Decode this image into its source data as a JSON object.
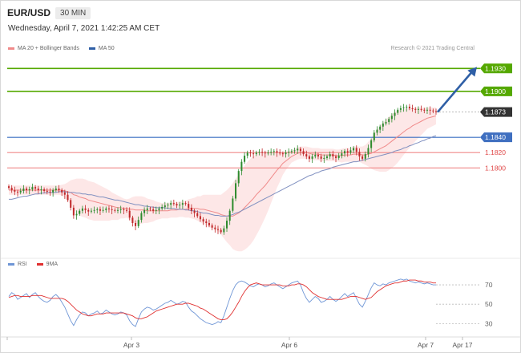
{
  "header": {
    "symbol": "EUR/USD",
    "timeframe": "30 MIN",
    "datetime": "Wednesday, April 7, 2021 1:42:25 AM CET",
    "credit": "Research © 2021 Trading Central"
  },
  "legend": {
    "ma20": "MA 20 + Bollinger Bands",
    "ma50": "MA 50",
    "rsi": "RSI",
    "ma9": "9MA"
  },
  "colors": {
    "up": "#2e8b2e",
    "down": "#c0282a",
    "ma20": "#f08a8a",
    "band": "#fde3e3",
    "ma50": "#8090c0",
    "resistance": "#55a800",
    "pivot": "#3a6fc2",
    "support": "#f08888",
    "current": "#333333",
    "rsi": "#6f96d6",
    "rsi_ma": "#e03030",
    "arrow": "#2f5fa6"
  },
  "chart_data": [
    {
      "type": "candlestick",
      "y_tick_labels": [
        "1.1930",
        "1.1900",
        "1.1873",
        "1.1840",
        "1.1820",
        "1.1800"
      ],
      "x_tick_labels": [
        "Apr 3",
        "Apr 6",
        "Apr 7",
        "Apr 17"
      ],
      "ylim": [
        1.1685,
        1.1945
      ],
      "levels": [
        {
          "label": "1.1930",
          "value": 1.193,
          "kind": "resistance"
        },
        {
          "label": "1.1900",
          "value": 1.19,
          "kind": "resistance"
        },
        {
          "label": "1.1873",
          "value": 1.1873,
          "kind": "current"
        },
        {
          "label": "1.1840",
          "value": 1.184,
          "kind": "pivot"
        },
        {
          "label": "1.1820",
          "value": 1.182,
          "kind": "support"
        },
        {
          "label": "1.1800",
          "value": 1.18,
          "kind": "support"
        }
      ],
      "forecast_arrow": {
        "from": 1.1873,
        "to": 1.1932
      },
      "close": [
        1.1774,
        1.1771,
        1.1769,
        1.1768,
        1.177,
        1.1773,
        1.1771,
        1.1772,
        1.1775,
        1.1773,
        1.1771,
        1.1772,
        1.177,
        1.1769,
        1.1768,
        1.1771,
        1.1773,
        1.1771,
        1.1768,
        1.1765,
        1.1758,
        1.1748,
        1.1738,
        1.174,
        1.1744,
        1.1747,
        1.1745,
        1.1743,
        1.1744,
        1.1745,
        1.1746,
        1.1744,
        1.1745,
        1.1747,
        1.1746,
        1.1745,
        1.1744,
        1.1745,
        1.1746,
        1.1745,
        1.1744,
        1.1735,
        1.1728,
        1.1724,
        1.1732,
        1.1741,
        1.1745,
        1.1747,
        1.1746,
        1.1744,
        1.1745,
        1.1747,
        1.1749,
        1.1751,
        1.1752,
        1.1754,
        1.1753,
        1.1751,
        1.1752,
        1.1754,
        1.1753,
        1.1748,
        1.1744,
        1.1741,
        1.1737,
        1.1733,
        1.173,
        1.1728,
        1.1725,
        1.1722,
        1.172,
        1.1719,
        1.1716,
        1.1721,
        1.1731,
        1.1744,
        1.176,
        1.178,
        1.1796,
        1.1808,
        1.1816,
        1.182,
        1.1819,
        1.1818,
        1.182,
        1.1821,
        1.182,
        1.1819,
        1.182,
        1.1821,
        1.1822,
        1.182,
        1.1819,
        1.1818,
        1.182,
        1.1821,
        1.1822,
        1.1823,
        1.1825,
        1.1822,
        1.1818,
        1.1815,
        1.1812,
        1.1815,
        1.1817,
        1.1815,
        1.1812,
        1.1813,
        1.1815,
        1.1818,
        1.1815,
        1.1813,
        1.1816,
        1.1819,
        1.1822,
        1.182,
        1.1823,
        1.1826,
        1.1821,
        1.1815,
        1.1812,
        1.1818,
        1.1826,
        1.1836,
        1.1846,
        1.185,
        1.1854,
        1.1858,
        1.186,
        1.1864,
        1.1868,
        1.1872,
        1.1876,
        1.1878,
        1.1879,
        1.188,
        1.1878,
        1.1877,
        1.1876,
        1.1877,
        1.1876,
        1.1875,
        1.1876,
        1.1875,
        1.1874,
        1.1873
      ],
      "ma20": [
        1.1771,
        1.1771,
        1.1771,
        1.1771,
        1.1771,
        1.1771,
        1.1771,
        1.1771,
        1.1771,
        1.1771,
        1.1771,
        1.1771,
        1.1771,
        1.1771,
        1.1771,
        1.1771,
        1.1771,
        1.1771,
        1.1771,
        1.177,
        1.1769,
        1.1768,
        1.1765,
        1.1764,
        1.1762,
        1.1761,
        1.176,
        1.1758,
        1.1757,
        1.1756,
        1.1755,
        1.1754,
        1.1753,
        1.1752,
        1.1751,
        1.175,
        1.1749,
        1.1748,
        1.1748,
        1.1747,
        1.1747,
        1.1746,
        1.1746,
        1.1745,
        1.1745,
        1.1745,
        1.1745,
        1.1744,
        1.1744,
        1.1744,
        1.1744,
        1.1744,
        1.1744,
        1.1744,
        1.1744,
        1.1745,
        1.1745,
        1.1745,
        1.1746,
        1.1746,
        1.1746,
        1.1747,
        1.1747,
        1.1747,
        1.1747,
        1.1746,
        1.1746,
        1.1745,
        1.1744,
        1.1743,
        1.1742,
        1.1741,
        1.1739,
        1.1738,
        1.1737,
        1.1737,
        1.1737,
        1.1739,
        1.1741,
        1.1744,
        1.1748,
        1.1752,
        1.1756,
        1.176,
        1.1765,
        1.1769,
        1.1773,
        1.1777,
        1.1782,
        1.1787,
        1.1792,
        1.1797,
        1.1801,
        1.1806,
        1.1809,
        1.1812,
        1.1815,
        1.1817,
        1.1819,
        1.182,
        1.182,
        1.182,
        1.1819,
        1.1818,
        1.1818,
        1.1818,
        1.1817,
        1.1817,
        1.1817,
        1.1817,
        1.1817,
        1.1816,
        1.1816,
        1.1816,
        1.1817,
        1.1817,
        1.1817,
        1.1818,
        1.1818,
        1.1818,
        1.1817,
        1.1817,
        1.1818,
        1.1819,
        1.1821,
        1.1823,
        1.1825,
        1.1827,
        1.1829,
        1.1832,
        1.1835,
        1.1838,
        1.1841,
        1.1844,
        1.1847,
        1.185,
        1.1852,
        1.1855,
        1.1857,
        1.1859,
        1.1861,
        1.1863,
        1.1865,
        1.1866,
        1.1867,
        1.1868
      ],
      "bb_width": [
        0.0006,
        0.0006,
        0.0006,
        0.0006,
        0.0006,
        0.0006,
        0.0006,
        0.0006,
        0.0006,
        0.0006,
        0.0006,
        0.0006,
        0.0006,
        0.0006,
        0.0006,
        0.0006,
        0.0006,
        0.0006,
        0.0007,
        0.0009,
        0.0012,
        0.0016,
        0.002,
        0.0022,
        0.0024,
        0.0025,
        0.0025,
        0.0025,
        0.0025,
        0.0025,
        0.0024,
        0.0023,
        0.0022,
        0.0021,
        0.002,
        0.0018,
        0.0017,
        0.0016,
        0.0014,
        0.0013,
        0.0012,
        0.0014,
        0.0016,
        0.0018,
        0.0018,
        0.0018,
        0.0017,
        0.0016,
        0.0015,
        0.0014,
        0.0012,
        0.0011,
        0.001,
        0.001,
        0.001,
        0.001,
        0.001,
        0.001,
        0.001,
        0.001,
        0.0011,
        0.0012,
        0.0013,
        0.0014,
        0.0016,
        0.0017,
        0.0019,
        0.002,
        0.0021,
        0.0022,
        0.0023,
        0.0024,
        0.0026,
        0.003,
        0.0034,
        0.0038,
        0.0043,
        0.0047,
        0.005,
        0.0053,
        0.0055,
        0.0056,
        0.0056,
        0.0055,
        0.0053,
        0.005,
        0.0046,
        0.0042,
        0.0038,
        0.0033,
        0.0028,
        0.0023,
        0.0019,
        0.0015,
        0.0012,
        0.001,
        0.0008,
        0.0008,
        0.0008,
        0.0008,
        0.0008,
        0.0008,
        0.0008,
        0.0008,
        0.0008,
        0.0008,
        0.0008,
        0.0008,
        0.0008,
        0.0008,
        0.0008,
        0.0008,
        0.0008,
        0.0009,
        0.0009,
        0.0009,
        0.0009,
        0.001,
        0.001,
        0.001,
        0.0011,
        0.0013,
        0.0016,
        0.002,
        0.0024,
        0.0027,
        0.003,
        0.0032,
        0.0034,
        0.0035,
        0.0035,
        0.0035,
        0.0034,
        0.0032,
        0.003,
        0.0028,
        0.0026,
        0.0024,
        0.0022,
        0.002,
        0.0018,
        0.0016,
        0.0014,
        0.0013,
        0.0012,
        0.0011
      ],
      "ma50": [
        1.1759,
        1.1759,
        1.176,
        1.1761,
        1.1762,
        1.1763,
        1.1763,
        1.1764,
        1.1765,
        1.1766,
        1.1766,
        1.1767,
        1.1767,
        1.1768,
        1.1768,
        1.1768,
        1.1768,
        1.1769,
        1.1769,
        1.1769,
        1.1768,
        1.1768,
        1.1768,
        1.1767,
        1.1767,
        1.1766,
        1.1766,
        1.1765,
        1.1765,
        1.1764,
        1.1763,
        1.1762,
        1.1762,
        1.1761,
        1.176,
        1.1759,
        1.1758,
        1.1758,
        1.1757,
        1.1756,
        1.1755,
        1.1754,
        1.1753,
        1.1752,
        1.1752,
        1.1751,
        1.175,
        1.175,
        1.1749,
        1.1749,
        1.1748,
        1.1748,
        1.1748,
        1.1748,
        1.1747,
        1.1747,
        1.1747,
        1.1746,
        1.1746,
        1.1746,
        1.1745,
        1.1745,
        1.1744,
        1.1744,
        1.1743,
        1.1742,
        1.1741,
        1.1741,
        1.174,
        1.1739,
        1.1738,
        1.1738,
        1.1737,
        1.1737,
        1.1737,
        1.1738,
        1.1739,
        1.1741,
        1.1742,
        1.1744,
        1.1746,
        1.1748,
        1.175,
        1.1752,
        1.1754,
        1.1756,
        1.1758,
        1.176,
        1.1762,
        1.1764,
        1.1766,
        1.1768,
        1.177,
        1.1772,
        1.1774,
        1.1776,
        1.1778,
        1.178,
        1.1782,
        1.1784,
        1.1786,
        1.1788,
        1.179,
        1.1791,
        1.1793,
        1.1794,
        1.1796,
        1.1797,
        1.1798,
        1.1799,
        1.1801,
        1.1802,
        1.1803,
        1.1804,
        1.1805,
        1.1806,
        1.1807,
        1.1808,
        1.1808,
        1.1809,
        1.181,
        1.1811,
        1.1812,
        1.1813,
        1.1814,
        1.1815,
        1.1816,
        1.1817,
        1.1818,
        1.1819,
        1.182,
        1.1822,
        1.1823,
        1.1824,
        1.1826,
        1.1827,
        1.1829,
        1.183,
        1.1832,
        1.1833,
        1.1835,
        1.1836,
        1.1838,
        1.1839,
        1.1841,
        1.1842
      ]
    },
    {
      "type": "line",
      "title": "RSI",
      "y_tick_labels": [
        "70",
        "50",
        "30"
      ],
      "ylim": [
        22,
        80
      ],
      "series": [
        {
          "name": "RSI",
          "values": [
            58,
            62,
            60,
            55,
            57,
            59,
            61,
            57,
            60,
            62,
            58,
            55,
            53,
            52,
            54,
            58,
            60,
            57,
            52,
            47,
            40,
            33,
            28,
            34,
            39,
            42,
            41,
            38,
            40,
            41,
            43,
            40,
            41,
            44,
            42,
            40,
            39,
            40,
            42,
            41,
            39,
            33,
            29,
            27,
            35,
            42,
            45,
            47,
            46,
            44,
            45,
            47,
            49,
            51,
            52,
            54,
            52,
            50,
            51,
            53,
            52,
            47,
            43,
            41,
            38,
            35,
            33,
            31,
            30,
            29,
            30,
            32,
            31,
            38,
            47,
            56,
            64,
            70,
            73,
            74,
            73,
            71,
            69,
            68,
            70,
            71,
            70,
            68,
            69,
            71,
            72,
            70,
            68,
            66,
            68,
            70,
            72,
            73,
            74,
            70,
            62,
            56,
            52,
            55,
            58,
            56,
            52,
            53,
            55,
            58,
            55,
            53,
            55,
            58,
            61,
            58,
            60,
            62,
            56,
            50,
            47,
            53,
            60,
            67,
            72,
            70,
            69,
            71,
            70,
            72,
            73,
            74,
            75,
            76,
            75,
            76,
            74,
            73,
            72,
            73,
            72,
            71,
            72,
            71,
            70,
            70
          ]
        },
        {
          "name": "9MA",
          "values": [
            57,
            58,
            59,
            59,
            58,
            58,
            58,
            58,
            59,
            59,
            59,
            59,
            58,
            57,
            56,
            56,
            56,
            56,
            56,
            55,
            53,
            50,
            47,
            44,
            42,
            40,
            39,
            38,
            38,
            39,
            40,
            40,
            40,
            41,
            41,
            41,
            41,
            41,
            41,
            41,
            40,
            39,
            38,
            36,
            35,
            35,
            36,
            37,
            39,
            41,
            43,
            44,
            45,
            46,
            47,
            48,
            49,
            50,
            50,
            50,
            51,
            51,
            50,
            49,
            48,
            46,
            45,
            43,
            41,
            39,
            37,
            35,
            34,
            34,
            35,
            38,
            42,
            47,
            52,
            58,
            63,
            67,
            70,
            71,
            72,
            71,
            70,
            70,
            70,
            70,
            70,
            70,
            70,
            69,
            69,
            69,
            70,
            70,
            71,
            71,
            70,
            68,
            65,
            62,
            60,
            58,
            57,
            56,
            55,
            55,
            55,
            55,
            55,
            55,
            56,
            57,
            58,
            58,
            58,
            57,
            56,
            55,
            56,
            57,
            60,
            63,
            65,
            67,
            69,
            70,
            71,
            72,
            72,
            73,
            74,
            74,
            75,
            75,
            75,
            74,
            74,
            73,
            73,
            73,
            72,
            72
          ]
        }
      ]
    }
  ]
}
